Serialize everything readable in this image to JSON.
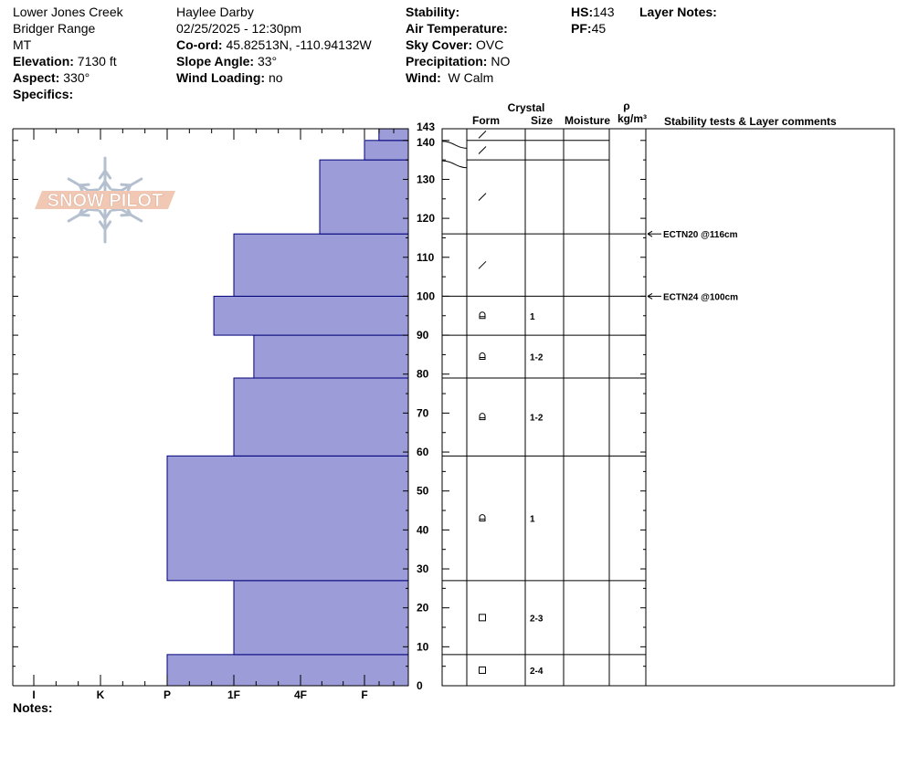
{
  "header": {
    "location": "Lower Jones Creek",
    "range": "Bridger Range",
    "state": "MT",
    "elevation_label": "Elevation:",
    "elevation": "7130 ft",
    "aspect_label": "Aspect:",
    "aspect": "330°",
    "specifics_label": "Specifics:",
    "observer": "Haylee Darby",
    "datetime": "02/25/2025 - 12:30pm",
    "coord_label": "Co-ord:",
    "coord": "45.82513N, -110.94132W",
    "slope_label": "Slope Angle:",
    "slope": "33°",
    "wind_loading_label": "Wind Loading:",
    "wind_loading": "no",
    "stability_label": "Stability:",
    "air_temp_label": "Air Temperature:",
    "sky_label": "Sky Cover:",
    "sky": "OVC",
    "precip_label": "Precipitation:",
    "precip": "NO",
    "wind_label": "Wind:",
    "wind": "W Calm",
    "hs_label": "HS:",
    "hs": "143",
    "pf_label": "PF:",
    "pf": "45",
    "layer_notes_label": "Layer Notes:"
  },
  "notes_label": "Notes:",
  "logo_text": "SNOW PILOT",
  "columns": {
    "crystal": "Crystal",
    "form": "Form",
    "size": "Size",
    "moisture": "Moisture",
    "rho": "ρ",
    "density_unit": "kg/m³",
    "stability": "Stability tests & Layer comments"
  },
  "chart_data": {
    "type": "bar",
    "orientation": "horizontal",
    "title": "",
    "ylabel": "",
    "xlabel": "",
    "ylim": [
      0,
      143
    ],
    "yticks": [
      0,
      10,
      20,
      30,
      40,
      50,
      60,
      70,
      80,
      90,
      100,
      110,
      120,
      130,
      140,
      143
    ],
    "hardness_scale": [
      "I",
      "K",
      "P",
      "1F",
      "4F",
      "F"
    ],
    "hardness_scale_values": [
      6,
      5,
      4,
      3,
      2,
      1
    ],
    "layers": [
      {
        "bottom": 0,
        "top": 8,
        "hardness": 4,
        "form": "square",
        "size": "2-4"
      },
      {
        "bottom": 8,
        "top": 27,
        "hardness": 3,
        "form": "square",
        "size": "2-3"
      },
      {
        "bottom": 27,
        "top": 59,
        "hardness": 4,
        "form": "rounded",
        "size": "1"
      },
      {
        "bottom": 59,
        "top": 79,
        "hardness": 3,
        "form": "rounded",
        "size": "1-2"
      },
      {
        "bottom": 79,
        "top": 90,
        "hardness": 2.7,
        "form": "rounded",
        "size": "1-2"
      },
      {
        "bottom": 90,
        "top": 100,
        "hardness": 3.3,
        "form": "rounded",
        "size": "1"
      },
      {
        "bottom": 100,
        "top": 116,
        "hardness": 3,
        "form": "slash",
        "size": ""
      },
      {
        "bottom": 116,
        "top": 135,
        "hardness": 1.7,
        "form": "slash",
        "size": ""
      },
      {
        "bottom": 135,
        "top": 140,
        "hardness": 1,
        "form": "slash",
        "size": ""
      },
      {
        "bottom": 140,
        "top": 143,
        "hardness": 0.67,
        "form": "slash",
        "size": ""
      }
    ],
    "stability_tests": [
      {
        "label": "ECTN20 @116cm",
        "depth": 116
      },
      {
        "label": "ECTN24 @100cm",
        "depth": 100
      }
    ]
  },
  "colors": {
    "bar_fill": "#9c9cd8",
    "bar_stroke": "#00007a",
    "logo_fill": "#f0c8b4",
    "snowflake": "#b4c0d0"
  }
}
